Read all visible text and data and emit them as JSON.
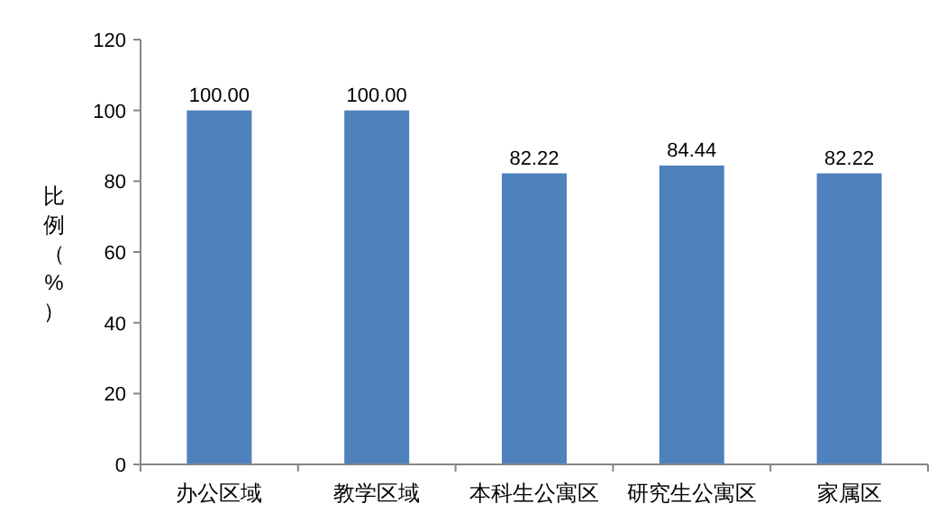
{
  "chart_data": {
    "type": "bar",
    "ylabel": "比例（%）",
    "categories": [
      "办公区域",
      "教学区域",
      "本科生公寓区",
      "研究生公寓区",
      "家属区"
    ],
    "values": [
      100.0,
      100.0,
      82.22,
      84.44,
      82.22
    ],
    "value_labels": [
      "100.00",
      "100.00",
      "82.22",
      "84.44",
      "82.22"
    ],
    "color": "#4f81bd",
    "ylim": [
      0,
      120
    ],
    "yticks": [
      0,
      20,
      40,
      60,
      80,
      100,
      120
    ],
    "grid": false
  }
}
